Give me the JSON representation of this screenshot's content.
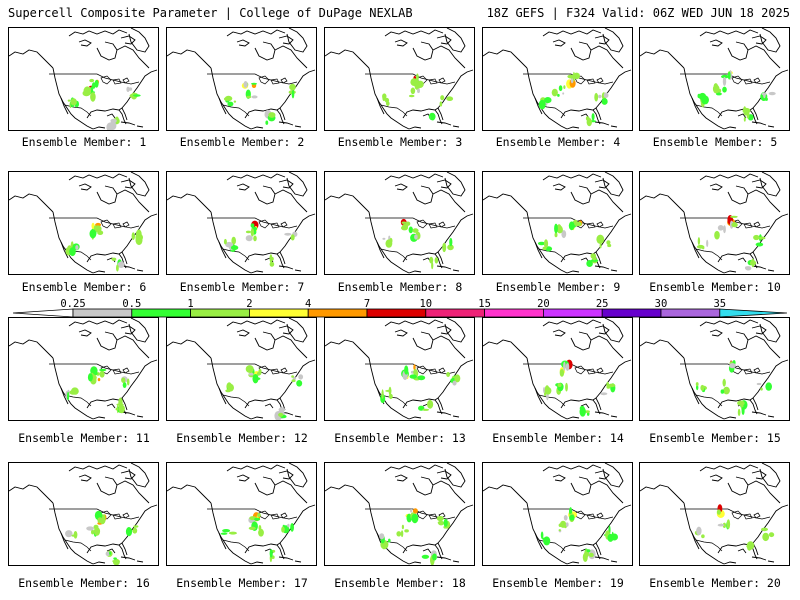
{
  "header": {
    "title": "Supercell Composite Parameter | College of DuPage NEXLAB",
    "run_info": "18Z GEFS | F324 Valid: 06Z WED JUN 18 2025"
  },
  "colorbar": {
    "labels": [
      "0.25",
      "0.5",
      "1",
      "2",
      "4",
      "7",
      "10",
      "15",
      "20",
      "25",
      "30",
      "35"
    ],
    "colors": [
      "#ffffff",
      "#c8c8c8",
      "#33ff33",
      "#99ee44",
      "#ffff33",
      "#ff9900",
      "#dd0000",
      "#ee2277",
      "#ff33cc",
      "#cc33ff",
      "#6600cc",
      "#aa66dd",
      "#33ddee"
    ]
  },
  "members": [
    {
      "label": "Ensemble Member: 1"
    },
    {
      "label": "Ensemble Member: 2"
    },
    {
      "label": "Ensemble Member: 3"
    },
    {
      "label": "Ensemble Member: 4"
    },
    {
      "label": "Ensemble Member: 5"
    },
    {
      "label": "Ensemble Member: 6"
    },
    {
      "label": "Ensemble Member: 7"
    },
    {
      "label": "Ensemble Member: 8"
    },
    {
      "label": "Ensemble Member: 9"
    },
    {
      "label": "Ensemble Member: 10"
    },
    {
      "label": "Ensemble Member: 11"
    },
    {
      "label": "Ensemble Member: 12"
    },
    {
      "label": "Ensemble Member: 13"
    },
    {
      "label": "Ensemble Member: 14"
    },
    {
      "label": "Ensemble Member: 15"
    },
    {
      "label": "Ensemble Member: 16"
    },
    {
      "label": "Ensemble Member: 17"
    },
    {
      "label": "Ensemble Member: 18"
    },
    {
      "label": "Ensemble Member: 19"
    },
    {
      "label": "Ensemble Member: 20"
    }
  ]
}
